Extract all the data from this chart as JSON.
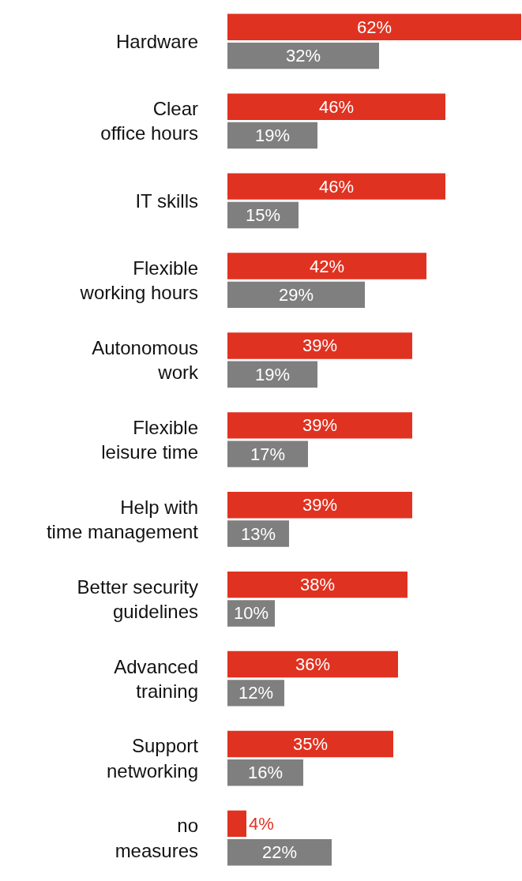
{
  "chart_data": {
    "type": "bar",
    "orientation": "horizontal",
    "categories": [
      "Hardware",
      "Clear\noffice hours",
      "IT skills",
      "Flexible\nworking hours",
      "Autonomous\nwork",
      "Flexible\nleisure time",
      "Help with\ntime management",
      "Better security\nguidelines",
      "Advanced\ntraining",
      "Support\nnetworking",
      "no\nmeasures"
    ],
    "xlim": [
      0,
      62
    ],
    "series": [
      {
        "color": "#e03221",
        "values": [
          62,
          46,
          46,
          42,
          39,
          39,
          39,
          38,
          36,
          35,
          4
        ],
        "value_labels": [
          "62%",
          "46%",
          "46%",
          "42%",
          "39%",
          "39%",
          "39%",
          "38%",
          "36%",
          "35%",
          "4%"
        ]
      },
      {
        "color": "#7f7f7f",
        "values": [
          32,
          19,
          15,
          29,
          19,
          17,
          13,
          10,
          12,
          16,
          22
        ],
        "value_labels": [
          "32%",
          "19%",
          "15%",
          "29%",
          "19%",
          "17%",
          "13%",
          "10%",
          "12%",
          "16%",
          "22%"
        ]
      }
    ]
  }
}
